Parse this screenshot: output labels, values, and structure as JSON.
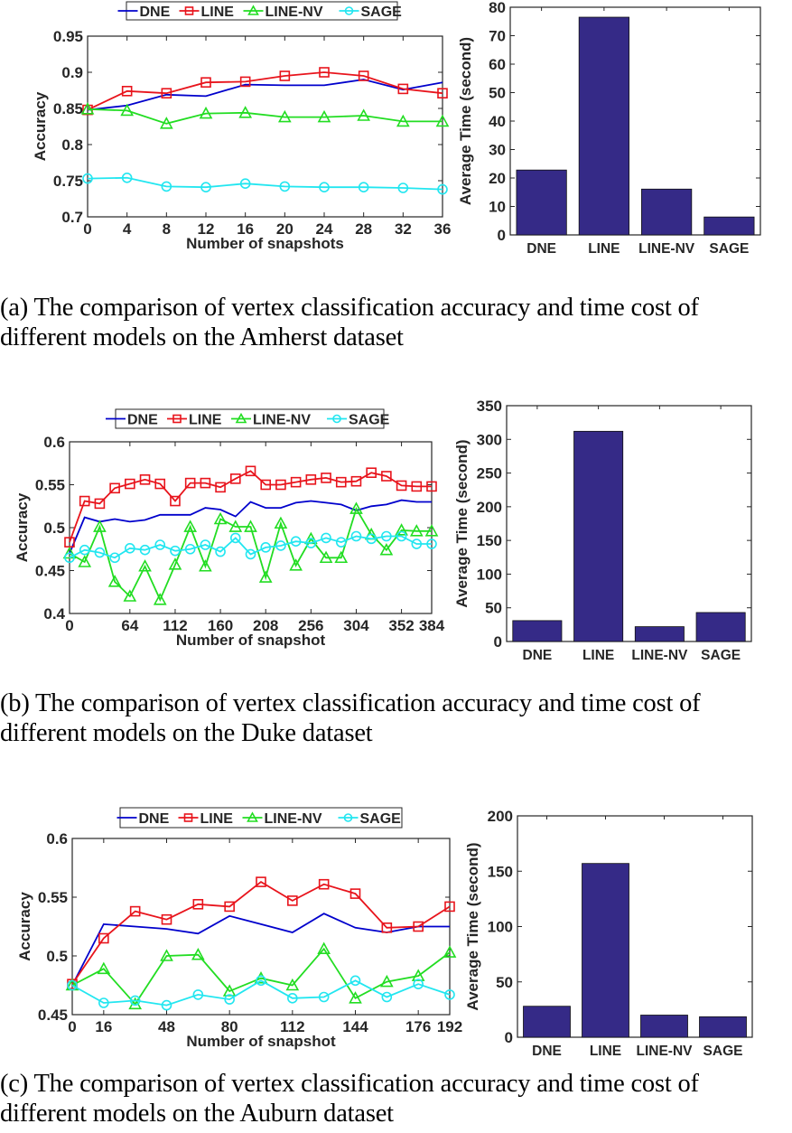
{
  "legend": {
    "series": [
      {
        "name": "DNE",
        "color": "#0000cc",
        "marker": "none"
      },
      {
        "name": "LINE",
        "color": "#e8141c",
        "marker": "square"
      },
      {
        "name": "LINE-NV",
        "color": "#22dd22",
        "marker": "triangle"
      },
      {
        "name": "SAGE",
        "color": "#22e6f0",
        "marker": "circle"
      }
    ]
  },
  "colors": {
    "bar": "#352a87",
    "axis": "#262626"
  },
  "panels": [
    {
      "caption_line1": "(a) The comparison of vertex classification accuracy and time cost of",
      "caption_line2": "different models on the Amherst dataset"
    },
    {
      "caption_line1": "(b) The comparison of vertex classification accuracy and time cost of",
      "caption_line2": "different models on the Duke dataset"
    },
    {
      "caption_line1": "(c) The comparison of vertex classification accuracy and time cost of",
      "caption_line2": "different models on the Auburn dataset"
    }
  ],
  "chart_data": [
    {
      "id": "a-line",
      "type": "line",
      "title": "",
      "xlabel": "Number of snapshots",
      "ylabel": "Accuracy",
      "x": [
        0,
        4,
        8,
        12,
        16,
        20,
        24,
        28,
        32,
        36
      ],
      "xticks": [
        0,
        4,
        8,
        12,
        16,
        20,
        24,
        28,
        32,
        36
      ],
      "xlim": [
        0,
        36
      ],
      "ylim": [
        0.7,
        0.95
      ],
      "yticks": [
        0.7,
        0.75,
        0.8,
        0.85,
        0.9,
        0.95
      ],
      "legend_position": "top-outside",
      "series": [
        {
          "name": "DNE",
          "values": [
            0.848,
            0.854,
            0.869,
            0.867,
            0.883,
            0.882,
            0.882,
            0.89,
            0.876,
            0.886
          ]
        },
        {
          "name": "LINE",
          "values": [
            0.848,
            0.874,
            0.871,
            0.886,
            0.887,
            0.895,
            0.9,
            0.895,
            0.877,
            0.871
          ]
        },
        {
          "name": "LINE-NV",
          "values": [
            0.849,
            0.847,
            0.829,
            0.843,
            0.844,
            0.838,
            0.838,
            0.84,
            0.832,
            0.832
          ]
        },
        {
          "name": "SAGE",
          "values": [
            0.753,
            0.754,
            0.742,
            0.741,
            0.746,
            0.742,
            0.741,
            0.741,
            0.74,
            0.738
          ]
        }
      ]
    },
    {
      "id": "a-bar",
      "type": "bar",
      "title": "",
      "xlabel": "",
      "ylabel": "Average Time (second)",
      "categories": [
        "DNE",
        "LINE",
        "LINE-NV",
        "SAGE"
      ],
      "values": [
        22.8,
        76.5,
        16.1,
        6.3
      ],
      "ylim": [
        0,
        80
      ],
      "yticks": [
        0,
        10,
        20,
        30,
        40,
        50,
        60,
        70,
        80
      ]
    },
    {
      "id": "b-line",
      "type": "line",
      "title": "",
      "xlabel": "Number of snapshot",
      "ylabel": "Accuracy",
      "x": [
        0,
        16,
        32,
        48,
        64,
        80,
        96,
        112,
        128,
        144,
        160,
        176,
        192,
        208,
        224,
        240,
        256,
        272,
        288,
        304,
        320,
        336,
        352,
        368,
        384
      ],
      "xticks": [
        0,
        64,
        112,
        160,
        208,
        256,
        304,
        352,
        384
      ],
      "xlim": [
        0,
        384
      ],
      "ylim": [
        0.4,
        0.6
      ],
      "yticks": [
        0.4,
        0.45,
        0.5,
        0.55,
        0.6
      ],
      "legend_position": "top-outside",
      "series": [
        {
          "name": "DNE",
          "values": [
            0.47,
            0.512,
            0.507,
            0.51,
            0.507,
            0.509,
            0.515,
            0.515,
            0.515,
            0.523,
            0.521,
            0.513,
            0.53,
            0.523,
            0.523,
            0.529,
            0.531,
            0.529,
            0.527,
            0.52,
            0.525,
            0.527,
            0.532,
            0.53,
            0.53
          ]
        },
        {
          "name": "LINE",
          "values": [
            0.483,
            0.531,
            0.528,
            0.546,
            0.551,
            0.556,
            0.551,
            0.531,
            0.552,
            0.552,
            0.547,
            0.557,
            0.566,
            0.55,
            0.55,
            0.553,
            0.556,
            0.558,
            0.553,
            0.554,
            0.564,
            0.56,
            0.549,
            0.548,
            0.548
          ]
        },
        {
          "name": "LINE-NV",
          "values": [
            0.47,
            0.46,
            0.501,
            0.437,
            0.42,
            0.455,
            0.416,
            0.457,
            0.501,
            0.455,
            0.51,
            0.501,
            0.501,
            0.442,
            0.505,
            0.456,
            0.487,
            0.465,
            0.465,
            0.522,
            0.492,
            0.474,
            0.497,
            0.496,
            0.496
          ]
        },
        {
          "name": "SAGE",
          "values": [
            0.465,
            0.474,
            0.471,
            0.465,
            0.476,
            0.474,
            0.48,
            0.473,
            0.475,
            0.48,
            0.472,
            0.488,
            0.469,
            0.477,
            0.479,
            0.484,
            0.482,
            0.488,
            0.483,
            0.49,
            0.487,
            0.49,
            0.49,
            0.481,
            0.481
          ]
        }
      ]
    },
    {
      "id": "b-bar",
      "type": "bar",
      "title": "",
      "xlabel": "",
      "ylabel": "Average Time (second)",
      "categories": [
        "DNE",
        "LINE",
        "LINE-NV",
        "SAGE"
      ],
      "values": [
        31,
        312,
        22,
        43
      ],
      "ylim": [
        0,
        350
      ],
      "yticks": [
        0,
        50,
        100,
        150,
        200,
        250,
        300,
        350
      ]
    },
    {
      "id": "c-line",
      "type": "line",
      "title": "",
      "xlabel": "Number of snapshot",
      "ylabel": "Accuracy",
      "x": [
        0,
        16,
        32,
        48,
        64,
        80,
        96,
        112,
        128,
        144,
        160,
        176,
        192
      ],
      "xticks": [
        0,
        16,
        48,
        80,
        112,
        144,
        176,
        192
      ],
      "xlim": [
        0,
        192
      ],
      "ylim": [
        0.45,
        0.6
      ],
      "yticks": [
        0.45,
        0.5,
        0.55,
        0.6
      ],
      "legend_position": "top-outside",
      "series": [
        {
          "name": "DNE",
          "values": [
            0.475,
            0.527,
            0.525,
            0.523,
            0.519,
            0.534,
            0.527,
            0.52,
            0.536,
            0.524,
            0.52,
            0.525,
            0.525
          ]
        },
        {
          "name": "LINE",
          "values": [
            0.476,
            0.515,
            0.538,
            0.531,
            0.544,
            0.542,
            0.563,
            0.547,
            0.561,
            0.553,
            0.524,
            0.525,
            0.542
          ]
        },
        {
          "name": "LINE-NV",
          "values": [
            0.475,
            0.489,
            0.459,
            0.5,
            0.501,
            0.47,
            0.481,
            0.475,
            0.506,
            0.464,
            0.478,
            0.483,
            0.503
          ]
        },
        {
          "name": "SAGE",
          "values": [
            0.475,
            0.46,
            0.462,
            0.458,
            0.467,
            0.463,
            0.479,
            0.464,
            0.465,
            0.479,
            0.465,
            0.476,
            0.467
          ]
        }
      ]
    },
    {
      "id": "c-bar",
      "type": "bar",
      "title": "",
      "xlabel": "",
      "ylabel": "Average Time (second)",
      "categories": [
        "DNE",
        "LINE",
        "LINE-NV",
        "SAGE"
      ],
      "values": [
        28,
        157,
        20,
        18.5
      ],
      "ylim": [
        0,
        200
      ],
      "yticks": [
        0,
        50,
        100,
        150,
        200
      ]
    }
  ]
}
